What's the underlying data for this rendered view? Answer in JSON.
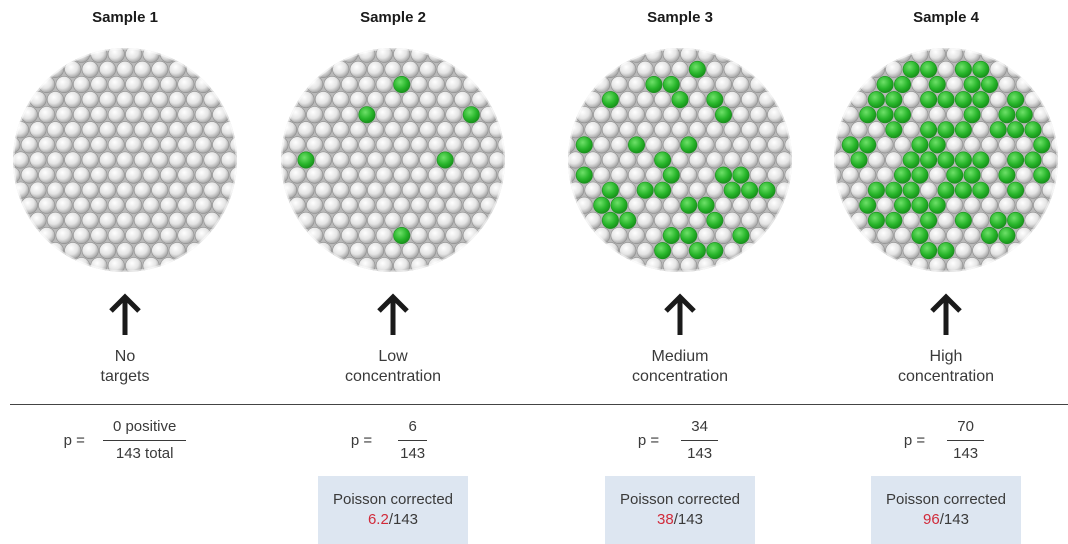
{
  "colors": {
    "positive": "#27b52a",
    "negative": "#d2d2d2",
    "corrected_value": "#d12a3a",
    "box_background": "#dde6f1"
  },
  "samples": [
    {
      "title": "Sample 1",
      "positive_count": 0,
      "desc": [
        "No",
        "targets"
      ],
      "p_label": "p =",
      "numerator": "0 positive",
      "denominator": "143 total",
      "poisson": null
    },
    {
      "title": "Sample 2",
      "positive_count": 6,
      "desc": [
        "Low",
        "concentration"
      ],
      "p_label": "p =",
      "numerator": "6",
      "denominator": "143",
      "poisson": {
        "label": "Poisson corrected",
        "value": "6.2",
        "suffix": "/143"
      }
    },
    {
      "title": "Sample 3",
      "positive_count": 34,
      "desc": [
        "Medium",
        "concentration"
      ],
      "p_label": "p =",
      "numerator": "34",
      "denominator": "143",
      "poisson": {
        "label": "Poisson corrected",
        "value": "38",
        "suffix": "/143"
      }
    },
    {
      "title": "Sample 4",
      "positive_count": 70,
      "desc": [
        "High",
        "concentration"
      ],
      "p_label": "p =",
      "numerator": "70",
      "denominator": "143",
      "poisson": {
        "label": "Poisson corrected",
        "value": "96",
        "suffix": "/143"
      }
    }
  ]
}
